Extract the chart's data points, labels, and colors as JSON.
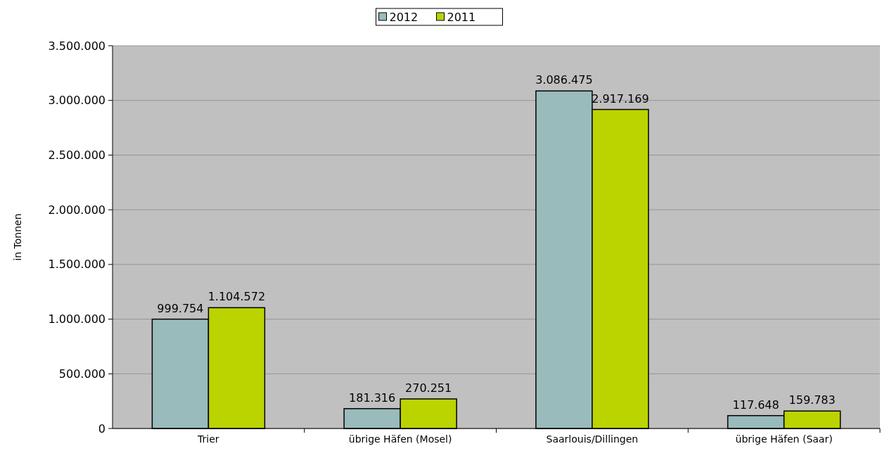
{
  "chart_data": {
    "type": "bar",
    "ylabel": "in Tonnen",
    "categories": [
      "Trier",
      "übrige Häfen (Mosel)",
      "Saarlouis/Dillingen",
      "übrige Häfen (Saar)"
    ],
    "series": [
      {
        "name": "2012",
        "color": "#99bbbb",
        "values": [
          999754,
          181316,
          3086475,
          117648
        ],
        "value_labels": [
          "999.754",
          "181.316",
          "3.086.475",
          "117.648"
        ]
      },
      {
        "name": "2011",
        "color": "#bbd400",
        "values": [
          1104572,
          270251,
          2917169,
          159783
        ],
        "value_labels": [
          "1.104.572",
          "270.251",
          "2.917.169",
          "159.783"
        ]
      }
    ],
    "ylim": [
      0,
      3500000
    ],
    "yticks": [
      {
        "value": 0,
        "label": "0"
      },
      {
        "value": 500000,
        "label": "500.000"
      },
      {
        "value": 1000000,
        "label": "1.000.000"
      },
      {
        "value": 1500000,
        "label": "1.500.000"
      },
      {
        "value": 2000000,
        "label": "2.000.000"
      },
      {
        "value": 2500000,
        "label": "2.500.000"
      },
      {
        "value": 3000000,
        "label": "3.000.000"
      },
      {
        "value": 3500000,
        "label": "3.500.000"
      }
    ],
    "grid": "y",
    "legend": "top"
  }
}
